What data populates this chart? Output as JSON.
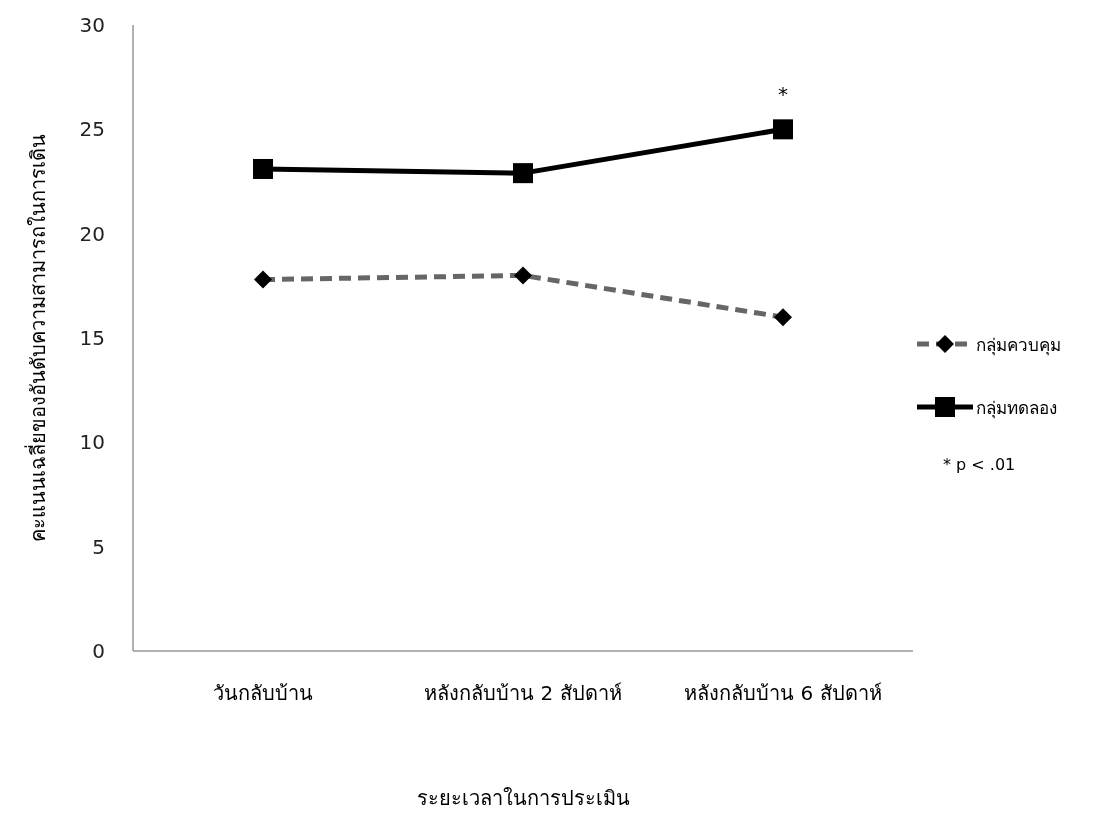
{
  "chart_data": {
    "type": "line",
    "xlabel": "ระยะเวลาในการประเมิน",
    "ylabel": "คะแนนเฉลี่ยของอันดับความสามารถในการเดิน",
    "categories": [
      "วันกลับบ้าน",
      "หลังกลับบ้าน 2 สัปดาห์",
      "หลังกลับบ้าน 6 สัปดาห์"
    ],
    "series": [
      {
        "name": "กลุ่มควบคุม",
        "color": "#666666",
        "marker": "diamond",
        "line_style": "dashed",
        "values": [
          17.8,
          18.0,
          16.0
        ]
      },
      {
        "name": "กลุ่มทดลอง",
        "color": "#000000",
        "marker": "square",
        "line_style": "solid",
        "values": [
          23.1,
          22.9,
          25.0
        ]
      }
    ],
    "ylim": [
      0,
      30
    ],
    "yticks": [
      0,
      5,
      10,
      15,
      20,
      25,
      30
    ],
    "grid": false,
    "legend": "right",
    "annotations": [
      {
        "text": "*",
        "x": "หลังกลับบ้าน 6 สัปดาห์",
        "y": 25.0
      },
      "* p < .01"
    ]
  }
}
